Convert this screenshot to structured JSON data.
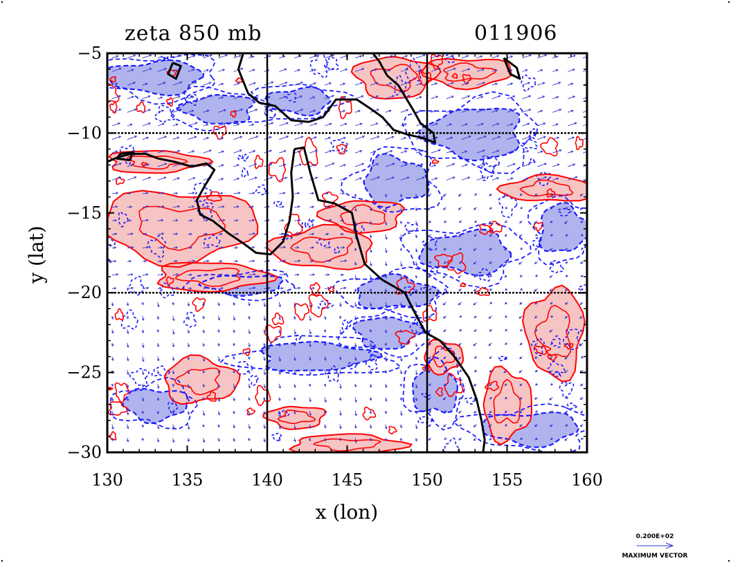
{
  "chart_data": {
    "type": "contour",
    "title_left": "zeta 850 mb",
    "title_right": "011906",
    "xlabel": "x (lon)",
    "ylabel": "y (lat)",
    "xlim": [
      130,
      160
    ],
    "ylim": [
      -30,
      -5
    ],
    "x_ticks": [
      130,
      135,
      140,
      145,
      150,
      155,
      160
    ],
    "y_ticks": [
      -5,
      -10,
      -15,
      -20,
      -25,
      -30
    ],
    "y_tick_labels": [
      "−5",
      "−10",
      "−15",
      "−20",
      "−25",
      "−30"
    ],
    "gridlines_x": [
      140,
      150
    ],
    "gridlines_y": [
      -10,
      -20
    ],
    "grid": true,
    "colors": {
      "positive_line": "#ff0000",
      "positive_fill": "#f7c4c4",
      "negative_line": "#1a1aff",
      "negative_fill": "#b0b4ee",
      "vectors": "#3333cc",
      "coastline": "#000000"
    },
    "legend": {
      "value_label": "0.200E+02",
      "caption": "MAXIMUM VECTOR",
      "position": "bottom-right"
    },
    "coastline": [
      [
        141.7,
        -11.0
      ],
      [
        141.5,
        -12.5
      ],
      [
        141.6,
        -14.0
      ],
      [
        141.4,
        -15.5
      ],
      [
        141.0,
        -16.8
      ],
      [
        140.2,
        -17.6
      ],
      [
        139.3,
        -17.5
      ],
      [
        138.5,
        -16.9
      ],
      [
        137.6,
        -16.3
      ],
      [
        136.6,
        -15.5
      ],
      [
        135.8,
        -15.1
      ],
      [
        135.6,
        -14.2
      ],
      [
        136.1,
        -13.3
      ],
      [
        136.7,
        -12.3
      ],
      [
        136.2,
        -11.9
      ],
      [
        135.3,
        -12.1
      ],
      [
        134.2,
        -11.8
      ],
      [
        133.2,
        -11.6
      ],
      [
        132.4,
        -11.3
      ],
      [
        131.5,
        -11.3
      ],
      [
        130.7,
        -11.5
      ],
      [
        130.0,
        -11.8
      ]
    ],
    "coastline_east": [
      [
        141.7,
        -11.0
      ],
      [
        142.3,
        -10.9
      ],
      [
        142.7,
        -12.5
      ],
      [
        143.2,
        -14.2
      ],
      [
        144.2,
        -14.4
      ],
      [
        145.3,
        -15.0
      ],
      [
        145.6,
        -16.5
      ],
      [
        146.1,
        -18.2
      ],
      [
        147.2,
        -19.2
      ],
      [
        148.6,
        -20.0
      ],
      [
        149.2,
        -21.2
      ],
      [
        149.9,
        -22.5
      ],
      [
        150.8,
        -23.0
      ],
      [
        151.7,
        -24.0
      ],
      [
        152.6,
        -25.3
      ],
      [
        153.1,
        -26.7
      ],
      [
        153.4,
        -28.0
      ],
      [
        153.6,
        -29.2
      ],
      [
        153.5,
        -30.0
      ]
    ],
    "new_guinea": [
      [
        138.5,
        -5.0
      ],
      [
        138.2,
        -6.0
      ],
      [
        138.8,
        -7.5
      ],
      [
        139.5,
        -8.1
      ],
      [
        140.5,
        -8.3
      ],
      [
        141.5,
        -9.2
      ],
      [
        142.6,
        -9.3
      ],
      [
        143.5,
        -9.0
      ],
      [
        144.3,
        -7.9
      ],
      [
        145.6,
        -7.9
      ],
      [
        146.5,
        -8.5
      ],
      [
        147.2,
        -9.0
      ],
      [
        147.9,
        -9.8
      ],
      [
        148.8,
        -10.1
      ],
      [
        149.7,
        -10.3
      ],
      [
        150.5,
        -10.6
      ],
      [
        150.4,
        -10.0
      ],
      [
        149.6,
        -9.4
      ],
      [
        149.1,
        -8.5
      ],
      [
        148.2,
        -7.0
      ],
      [
        147.5,
        -6.4
      ],
      [
        147.0,
        -5.5
      ],
      [
        146.6,
        -5.0
      ]
    ],
    "islands": [
      [
        [
          134.1,
          -5.6
        ],
        [
          134.6,
          -5.8
        ],
        [
          134.3,
          -6.6
        ],
        [
          133.8,
          -6.3
        ],
        [
          134.1,
          -5.6
        ]
      ],
      [
        [
          154.8,
          -5.3
        ],
        [
          155.6,
          -5.9
        ],
        [
          155.8,
          -6.6
        ],
        [
          155.2,
          -6.3
        ],
        [
          154.8,
          -5.3
        ]
      ],
      [
        [
          130.8,
          -11.3
        ],
        [
          131.6,
          -11.2
        ],
        [
          131.4,
          -11.7
        ],
        [
          130.6,
          -11.6
        ],
        [
          130.8,
          -11.3
        ]
      ]
    ],
    "positive_regions": [
      {
        "cx": 134.5,
        "cy": -15.8,
        "rx": 4.8,
        "ry": 2.2
      },
      {
        "cx": 136.5,
        "cy": -19.0,
        "rx": 3.5,
        "ry": 0.9
      },
      {
        "cx": 133.0,
        "cy": -11.8,
        "rx": 3.0,
        "ry": 0.7
      },
      {
        "cx": 143.5,
        "cy": -17.2,
        "rx": 3.2,
        "ry": 1.3
      },
      {
        "cx": 146.0,
        "cy": -15.2,
        "rx": 2.5,
        "ry": 1.0
      },
      {
        "cx": 148.0,
        "cy": -6.5,
        "rx": 2.5,
        "ry": 1.3
      },
      {
        "cx": 152.5,
        "cy": -6.2,
        "rx": 2.8,
        "ry": 0.9
      },
      {
        "cx": 157.5,
        "cy": -13.5,
        "rx": 2.8,
        "ry": 0.8
      },
      {
        "cx": 158.0,
        "cy": -22.5,
        "rx": 1.8,
        "ry": 2.8
      },
      {
        "cx": 155.0,
        "cy": -27.0,
        "rx": 1.5,
        "ry": 2.2
      },
      {
        "cx": 135.8,
        "cy": -25.5,
        "rx": 2.3,
        "ry": 1.4
      },
      {
        "cx": 141.8,
        "cy": -27.8,
        "rx": 1.8,
        "ry": 0.7
      },
      {
        "cx": 145.0,
        "cy": -29.5,
        "rx": 3.5,
        "ry": 0.6
      },
      {
        "cx": 151.0,
        "cy": -24.0,
        "rx": 1.2,
        "ry": 1.0
      }
    ],
    "negative_regions": [
      {
        "cx": 133.0,
        "cy": -6.5,
        "rx": 3.0,
        "ry": 1.0
      },
      {
        "cx": 137.0,
        "cy": -8.5,
        "rx": 2.2,
        "ry": 0.9
      },
      {
        "cx": 153.0,
        "cy": -10.0,
        "rx": 3.0,
        "ry": 1.6
      },
      {
        "cx": 152.5,
        "cy": -17.5,
        "rx": 2.8,
        "ry": 1.3
      },
      {
        "cx": 148.0,
        "cy": -13.0,
        "rx": 2.0,
        "ry": 1.5
      },
      {
        "cx": 148.0,
        "cy": -20.0,
        "rx": 2.5,
        "ry": 1.0
      },
      {
        "cx": 143.0,
        "cy": -24.0,
        "rx": 3.5,
        "ry": 0.9
      },
      {
        "cx": 147.5,
        "cy": -22.5,
        "rx": 2.0,
        "ry": 1.0
      },
      {
        "cx": 158.5,
        "cy": -16.0,
        "rx": 1.5,
        "ry": 1.5
      },
      {
        "cx": 150.5,
        "cy": -26.0,
        "rx": 1.4,
        "ry": 1.6
      },
      {
        "cx": 133.0,
        "cy": -27.0,
        "rx": 2.0,
        "ry": 1.0
      },
      {
        "cx": 138.5,
        "cy": -19.5,
        "rx": 2.5,
        "ry": 0.6
      },
      {
        "cx": 156.5,
        "cy": -28.5,
        "rx": 3.0,
        "ry": 1.0
      },
      {
        "cx": 142.0,
        "cy": -8.0,
        "rx": 2.0,
        "ry": 0.8
      }
    ]
  }
}
